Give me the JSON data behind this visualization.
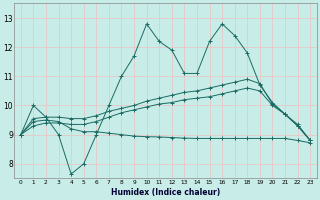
{
  "xlabel": "Humidex (Indice chaleur)",
  "background_color": "#c8ece8",
  "grid_color": "#e8c8c8",
  "line_color": "#1a6b62",
  "xlim": [
    -0.5,
    23.5
  ],
  "ylim": [
    7.5,
    13.5
  ],
  "xtick_vals": [
    0,
    1,
    2,
    3,
    4,
    5,
    6,
    7,
    8,
    9,
    10,
    11,
    12,
    13,
    14,
    15,
    16,
    17,
    18,
    19,
    20,
    21,
    22,
    23
  ],
  "ytick_vals": [
    8,
    9,
    10,
    11,
    12,
    13
  ],
  "series": [
    {
      "x": [
        0,
        1,
        2,
        3,
        4,
        5,
        6,
        7,
        8,
        9,
        10,
        11,
        12,
        13,
        14,
        15,
        16,
        17,
        18,
        19,
        20,
        21,
        22,
        23
      ],
      "y": [
        9.0,
        10.0,
        9.6,
        9.0,
        7.65,
        8.0,
        9.0,
        10.0,
        11.0,
        11.7,
        12.8,
        12.2,
        11.9,
        11.1,
        11.1,
        12.2,
        12.8,
        12.4,
        11.8,
        10.7,
        10.1,
        9.7,
        9.3,
        8.8
      ]
    },
    {
      "x": [
        0,
        1,
        2,
        3,
        4,
        5,
        6,
        7,
        8,
        9,
        10,
        11,
        12,
        13,
        14,
        15,
        16,
        17,
        18,
        19,
        20,
        21,
        22,
        23
      ],
      "y": [
        9.0,
        9.55,
        9.6,
        9.6,
        9.55,
        9.55,
        9.65,
        9.8,
        9.9,
        10.0,
        10.15,
        10.25,
        10.35,
        10.45,
        10.5,
        10.6,
        10.7,
        10.8,
        10.9,
        10.75,
        10.05,
        9.7,
        9.35,
        8.8
      ]
    },
    {
      "x": [
        0,
        1,
        2,
        3,
        4,
        5,
        6,
        7,
        8,
        9,
        10,
        11,
        12,
        13,
        14,
        15,
        16,
        17,
        18,
        19,
        20,
        21,
        22,
        23
      ],
      "y": [
        9.0,
        9.45,
        9.5,
        9.45,
        9.2,
        9.1,
        9.1,
        9.05,
        9.0,
        8.95,
        8.93,
        8.92,
        8.9,
        8.88,
        8.87,
        8.87,
        8.87,
        8.87,
        8.87,
        8.87,
        8.87,
        8.87,
        8.8,
        8.72
      ]
    },
    {
      "x": [
        0,
        1,
        2,
        3,
        4,
        5,
        6,
        7,
        8,
        9,
        10,
        11,
        12,
        13,
        14,
        15,
        16,
        17,
        18,
        19,
        20,
        21,
        22,
        23
      ],
      "y": [
        9.0,
        9.3,
        9.4,
        9.4,
        9.35,
        9.35,
        9.45,
        9.6,
        9.75,
        9.85,
        9.95,
        10.05,
        10.1,
        10.2,
        10.25,
        10.3,
        10.4,
        10.5,
        10.6,
        10.5,
        10.0,
        9.7,
        9.3,
        8.8
      ]
    }
  ]
}
